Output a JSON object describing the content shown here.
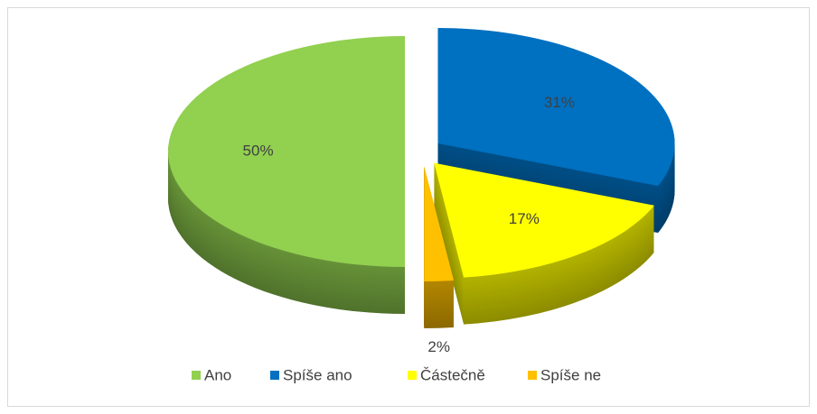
{
  "chart_data": {
    "type": "pie",
    "categories": [
      "Ano",
      "Spíše ano",
      "Částečně",
      "Spíše ne"
    ],
    "values": [
      50,
      31,
      17,
      2
    ],
    "value_labels": [
      "50%",
      "31%",
      "17%",
      "2%"
    ],
    "colors": [
      "#92d050",
      "#0070c0",
      "#ffff00",
      "#ffc000"
    ],
    "legend": "bottom"
  }
}
